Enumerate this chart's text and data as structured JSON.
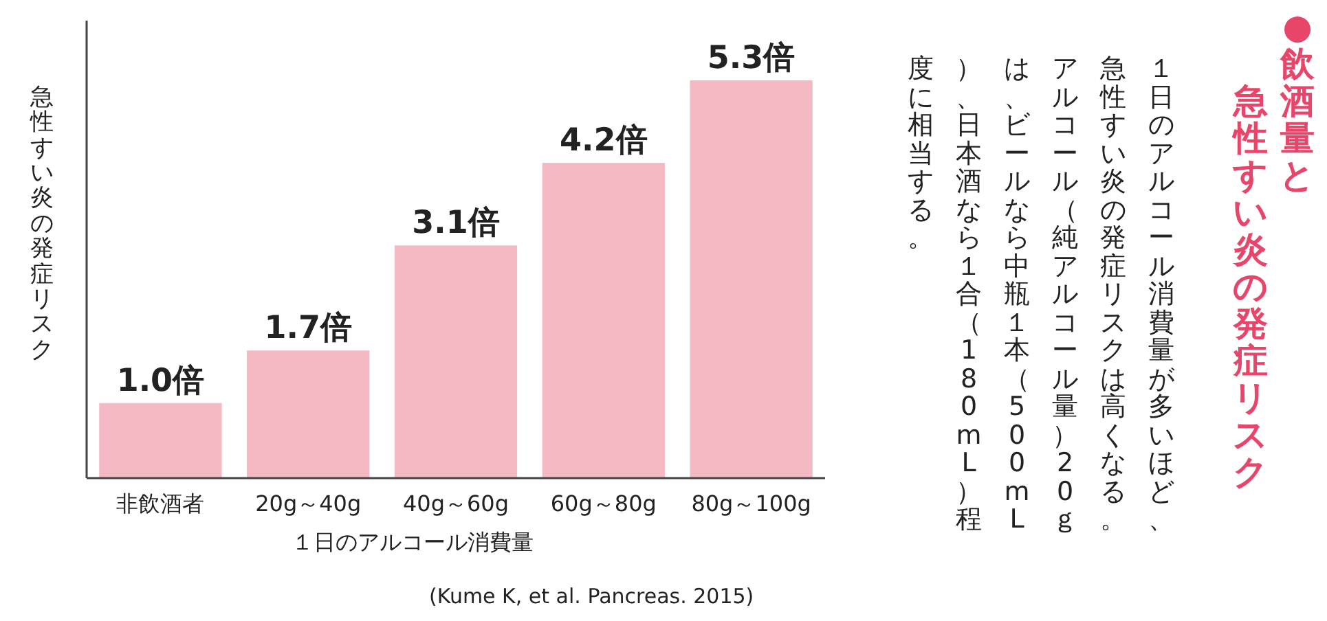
{
  "chart_data": {
    "type": "bar",
    "title": "●飲酒量と",
    "subtitle": "急性すい炎の発症リスク",
    "ylabel": "急性すい炎の発症リスク",
    "xlabel": "１日のアルコール消費量",
    "categories": [
      "非飲酒者",
      "20g～40g",
      "40g～60g",
      "60g～80g",
      "80g～100g"
    ],
    "values": [
      1.0,
      1.7,
      3.1,
      4.2,
      5.3
    ],
    "value_labels": [
      "1.0倍",
      "1.7倍",
      "3.1倍",
      "4.2倍",
      "5.3倍"
    ],
    "color": "#f5b9c4",
    "annotations": [
      "１日のアルコール消費量が多いほど、急性すい炎の発症リスクは高くなる。アルコール（純アルコール量）20ｇは、ビールなら中瓶１本（500mL）、日本酒なら１合（180mL）程度に相当する。",
      "(Kume K, et al. Pancreas. 2015)"
    ]
  }
}
